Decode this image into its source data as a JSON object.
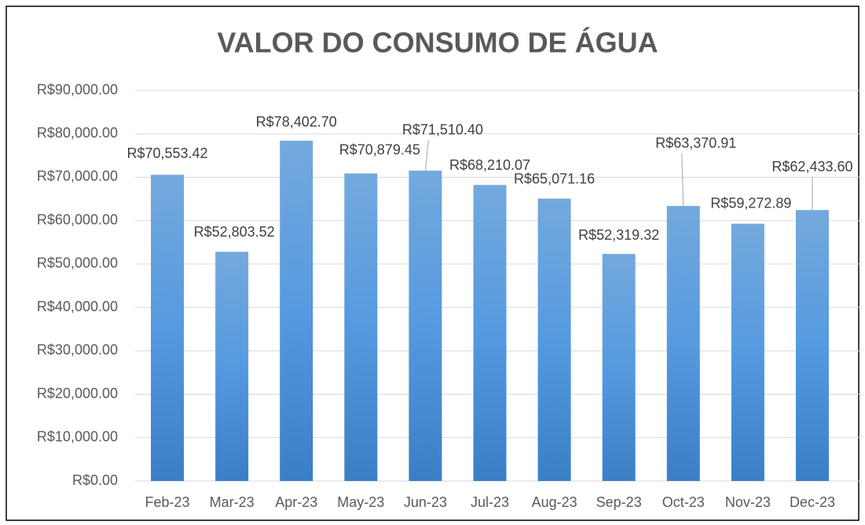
{
  "chart_data": {
    "type": "bar",
    "title": "VALOR DO CONSUMO DE ÁGUA",
    "categories": [
      "Feb-23",
      "Mar-23",
      "Apr-23",
      "May-23",
      "Jun-23",
      "Jul-23",
      "Aug-23",
      "Sep-23",
      "Oct-23",
      "Nov-23",
      "Dec-23"
    ],
    "values": [
      70553.42,
      52803.52,
      78402.7,
      70879.45,
      71510.4,
      68210.07,
      65071.16,
      52319.32,
      63370.91,
      59272.89,
      62433.6
    ],
    "value_labels": [
      "R$70,553.42",
      "R$52,803.52",
      "R$78,402.70",
      "R$70,879.45",
      "R$71,510.40",
      "R$68,210.07",
      "R$65,071.16",
      "R$52,319.32",
      "R$63,370.91",
      "R$59,272.89",
      "R$62,433.60"
    ],
    "color": "#5b9bd5",
    "ylim": [
      0,
      90000
    ],
    "yticks": [
      {
        "value": 0,
        "label": "R$0.00"
      },
      {
        "value": 10000,
        "label": "R$10,000.00"
      },
      {
        "value": 20000,
        "label": "R$20,000.00"
      },
      {
        "value": 30000,
        "label": "R$30,000.00"
      },
      {
        "value": 40000,
        "label": "R$40,000.00"
      },
      {
        "value": 50000,
        "label": "R$50,000.00"
      },
      {
        "value": 60000,
        "label": "R$60,000.00"
      },
      {
        "value": 70000,
        "label": "R$70,000.00"
      },
      {
        "value": 80000,
        "label": "R$80,000.00"
      },
      {
        "value": 90000,
        "label": "R$90,000.00"
      }
    ],
    "grid": true
  }
}
